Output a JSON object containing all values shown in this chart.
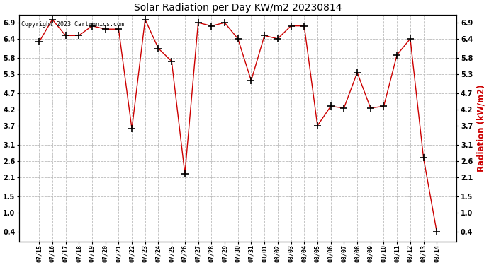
{
  "title": "Solar Radiation per Day KW/m2 20230814",
  "ylabel": "Radiation (kW/m2)",
  "copyright": "Copyright 2023 Cartronics.com",
  "dates": [
    "07/15",
    "07/16",
    "07/17",
    "07/18",
    "07/19",
    "07/20",
    "07/21",
    "07/22",
    "07/23",
    "07/24",
    "07/25",
    "07/26",
    "07/27",
    "07/28",
    "07/29",
    "07/30",
    "07/31",
    "08/01",
    "08/02",
    "08/03",
    "08/04",
    "08/05",
    "08/06",
    "08/07",
    "08/08",
    "08/09",
    "08/10",
    "08/11",
    "08/12",
    "08/13",
    "08/14"
  ],
  "values": [
    6.3,
    7.0,
    6.5,
    6.5,
    6.8,
    6.7,
    6.7,
    3.6,
    7.0,
    6.1,
    5.7,
    2.2,
    6.9,
    6.8,
    6.9,
    6.4,
    5.1,
    6.5,
    6.4,
    6.8,
    6.8,
    3.7,
    4.3,
    4.25,
    5.35,
    4.25,
    4.3,
    5.9,
    6.4,
    2.7,
    0.4
  ],
  "line_color": "#cc0000",
  "marker": "+",
  "marker_color": "#000000",
  "marker_size": 6,
  "ylabel_color": "#cc0000",
  "title_color": "#000000",
  "copyright_color": "#000000",
  "background_color": "#ffffff",
  "grid_color": "#bbbbbb",
  "yticks": [
    0.4,
    1.0,
    1.5,
    2.1,
    2.6,
    3.1,
    3.7,
    4.2,
    4.7,
    5.3,
    5.8,
    6.4,
    6.9
  ],
  "ylim": [
    0.1,
    7.15
  ],
  "figsize": [
    6.9,
    3.75
  ],
  "dpi": 100
}
